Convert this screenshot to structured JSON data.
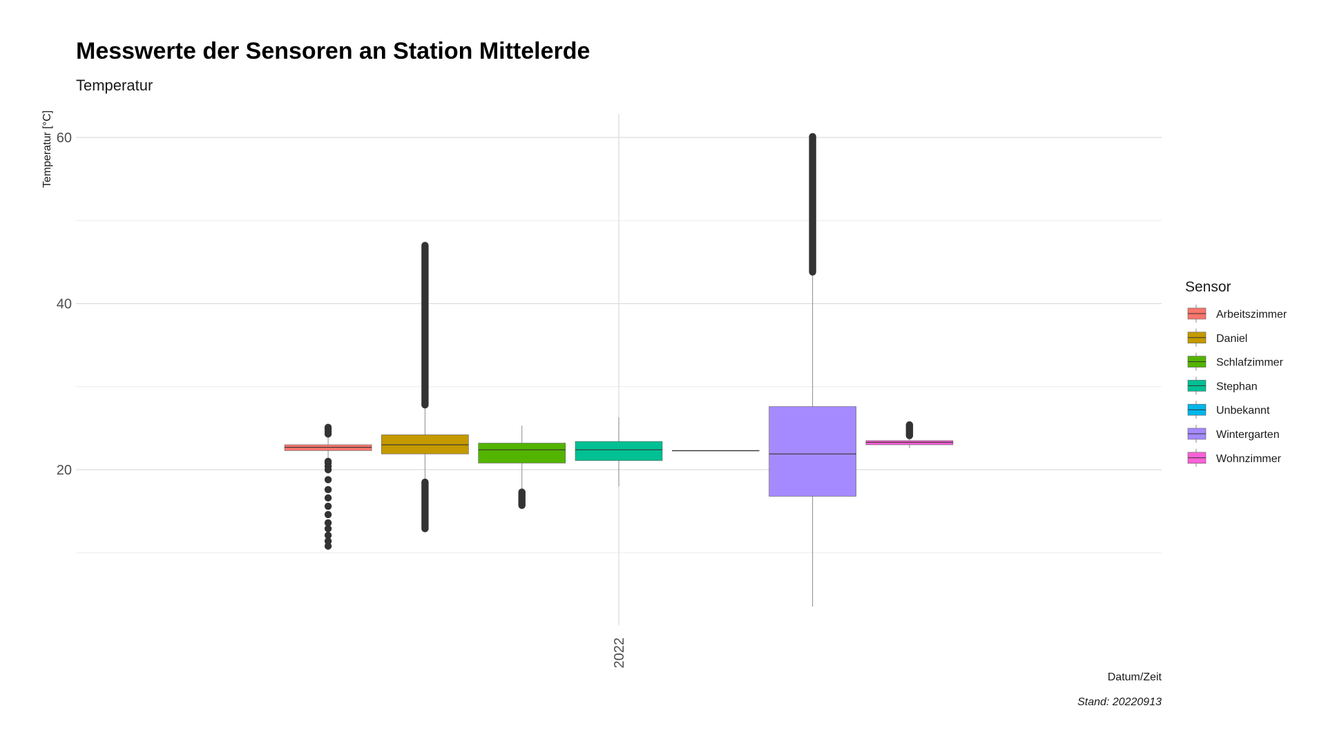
{
  "chart_data": {
    "type": "box",
    "title": "Messwerte der Sensoren an Station Mittelerde",
    "subtitle": "Temperatur",
    "xlabel": "Datum/Zeit",
    "ylabel": "Temperatur [°C]",
    "caption": "Stand: 20220913",
    "x_tick_labels": [
      "2022"
    ],
    "y_ticks": [
      20,
      40,
      60
    ],
    "y_minor_gridlines": [
      10,
      30,
      50
    ],
    "ylim": [
      3,
      63
    ],
    "grid": true,
    "legend": {
      "title": "Sensor",
      "position": "right"
    },
    "series": [
      {
        "name": "Arbeitszimmer",
        "color": "#F8766D",
        "q1": 22.3,
        "median": 22.7,
        "q3": 23.0,
        "whisker_low": 21.2,
        "whisker_high": 24.1,
        "outliers": [
          24.3,
          24.6,
          24.9,
          25.1,
          20.0,
          20.4,
          20.8,
          21.0,
          18.8,
          17.6,
          16.6,
          15.6,
          14.6,
          13.6,
          12.9,
          12.1,
          11.4,
          10.8
        ]
      },
      {
        "name": "Daniel",
        "color": "#C49A00",
        "q1": 21.9,
        "median": 23.0,
        "q3": 24.2,
        "whisker_low": 18.6,
        "whisker_high": 27.6,
        "outlier_ranges": [
          [
            27.8,
            47.0
          ],
          [
            12.9,
            18.5
          ]
        ]
      },
      {
        "name": "Schlafzimmer",
        "color": "#53B400",
        "q1": 20.8,
        "median": 22.4,
        "q3": 23.2,
        "whisker_low": 17.4,
        "whisker_high": 25.3,
        "outlier_ranges": [
          [
            15.7,
            17.3
          ]
        ]
      },
      {
        "name": "Stephan",
        "color": "#00C094",
        "q1": 21.1,
        "median": 22.4,
        "q3": 23.4,
        "whisker_low": 18.0,
        "whisker_high": 26.3
      },
      {
        "name": "Unbekannt",
        "color": "#00B6EB",
        "q1": 22.3,
        "median": 22.3,
        "q3": 22.3,
        "whisker_low": 22.3,
        "whisker_high": 22.3
      },
      {
        "name": "Wintergarten",
        "color": "#A58AFF",
        "q1": 16.8,
        "median": 21.9,
        "q3": 27.6,
        "whisker_low": 3.5,
        "whisker_high": 43.5,
        "outlier_ranges": [
          [
            43.8,
            60.1
          ]
        ]
      },
      {
        "name": "Wohnzimmer",
        "color": "#FB61D7",
        "q1": 23.0,
        "median": 23.3,
        "q3": 23.5,
        "whisker_low": 22.6,
        "whisker_high": 24.0,
        "outlier_ranges": [
          [
            24.1,
            25.4
          ]
        ]
      }
    ]
  }
}
